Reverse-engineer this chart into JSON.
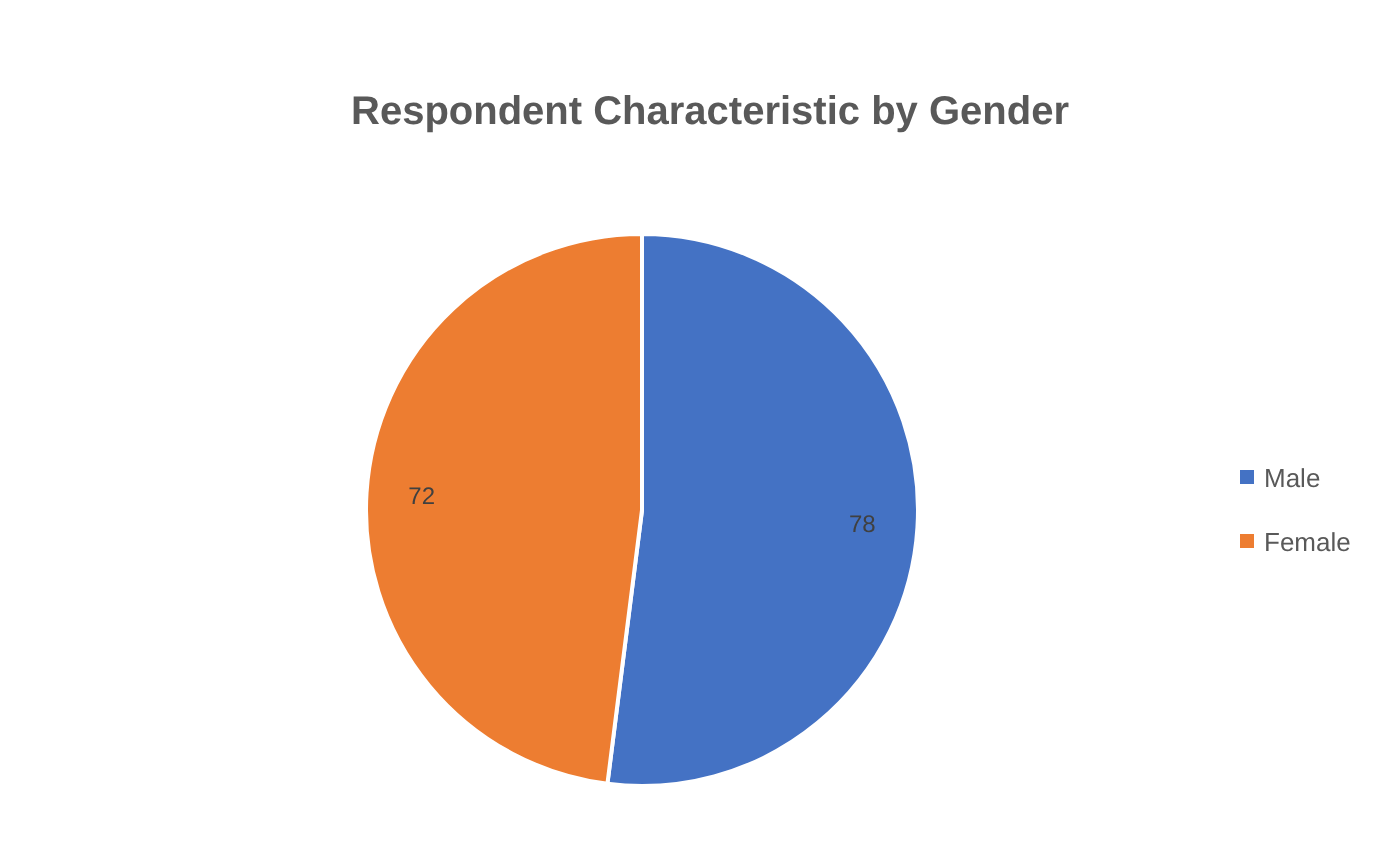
{
  "chart_data": {
    "type": "pie",
    "title": "Respondent Characteristic by Gender",
    "categories": [
      "Male",
      "Female"
    ],
    "values": [
      78,
      72
    ],
    "colors": [
      "#4472c4",
      "#ed7d31"
    ],
    "data_labels": true,
    "legend": "right"
  }
}
